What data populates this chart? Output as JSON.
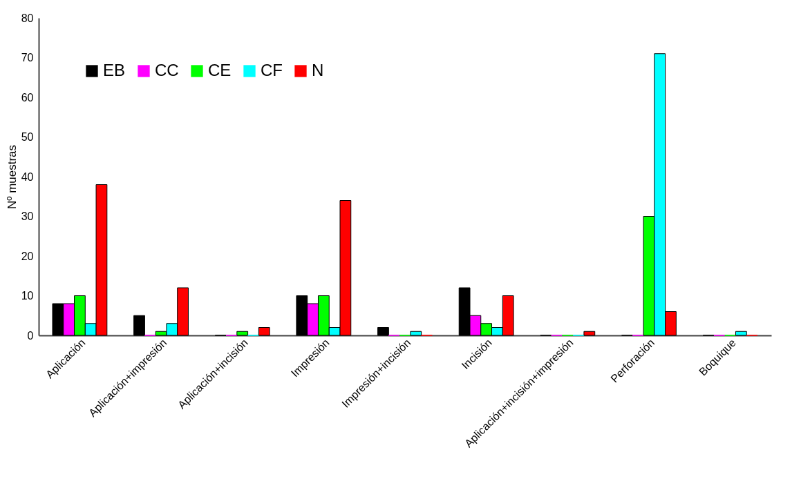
{
  "chart_data": {
    "type": "bar",
    "ylabel": "Nº muestras",
    "categories": [
      "Aplicación",
      "Aplicación+impresión",
      "Aplicación+incisión",
      "Impresión",
      "Impresión+incisión",
      "Incisión",
      "Aplicación+incisión+impresión",
      "Perforación",
      "Boquique"
    ],
    "series": [
      {
        "name": "EB",
        "color": "#000000",
        "values": [
          8,
          5,
          0,
          10,
          2,
          12,
          0,
          0,
          0
        ]
      },
      {
        "name": "CC",
        "color": "#ff00ff",
        "values": [
          8,
          0,
          0,
          8,
          0,
          5,
          0,
          0,
          0
        ]
      },
      {
        "name": "CE",
        "color": "#00ff00",
        "values": [
          10,
          1,
          1,
          10,
          0,
          3,
          0,
          30,
          0
        ]
      },
      {
        "name": "CF",
        "color": "#00ffff",
        "values": [
          3,
          3,
          0,
          2,
          1,
          2,
          0,
          71,
          1
        ]
      },
      {
        "name": "N",
        "color": "#ff0000",
        "values": [
          38,
          12,
          2,
          34,
          0,
          10,
          1,
          6,
          0
        ]
      }
    ],
    "ylim": [
      0,
      80
    ],
    "yticks": [
      0,
      10,
      20,
      30,
      40,
      50,
      60,
      70,
      80
    ],
    "grid": false,
    "legend": "top left"
  }
}
